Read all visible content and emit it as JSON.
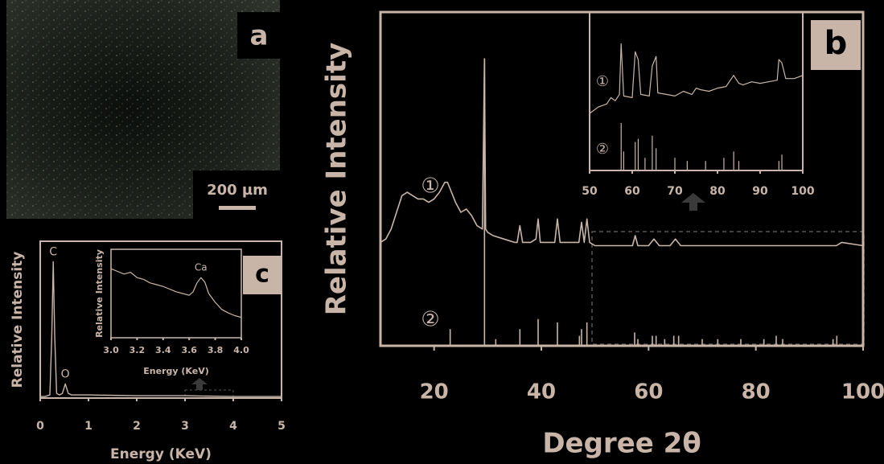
{
  "image_panel": {
    "label": "a",
    "scale_bar": "200 µm"
  },
  "chart_data": [
    {
      "type": "line",
      "panel_label": "b",
      "xlabel": "Degree 2θ",
      "ylabel": "Relative Intensity",
      "xlim": [
        10,
        100
      ],
      "ylim": [
        0,
        100
      ],
      "xticks": [
        20,
        40,
        60,
        80,
        100
      ],
      "series": [
        {
          "name": "①",
          "type": "line",
          "color": "#c9b5a8",
          "x": [
            10,
            11,
            12,
            13,
            14,
            15,
            16,
            17,
            18,
            19,
            20,
            21,
            22,
            22.5,
            23,
            24,
            25,
            26,
            27,
            28,
            29,
            29.4,
            29.6,
            30,
            31,
            33,
            35,
            35.5,
            36,
            36.5,
            38,
            39,
            39.4,
            39.8,
            41,
            42.5,
            43,
            43.5,
            45,
            47,
            47.5,
            48,
            48.5,
            49,
            50,
            55,
            57,
            57.5,
            58,
            60,
            61,
            62,
            64,
            65,
            66,
            70,
            75,
            80,
            85,
            90,
            95,
            96,
            100
          ],
          "values": [
            31,
            32,
            35,
            40,
            45,
            46,
            45,
            44,
            44,
            43,
            44,
            46,
            49,
            49,
            47,
            43,
            40,
            41,
            39,
            36,
            35,
            86,
            35,
            34,
            33,
            32,
            31,
            31,
            36,
            31,
            31,
            32,
            38,
            31,
            31,
            31,
            38,
            31,
            31,
            31,
            37,
            31,
            38,
            31,
            30,
            30,
            30,
            33,
            30,
            30,
            32,
            30,
            30,
            32,
            30,
            30,
            30,
            30,
            30,
            30,
            30,
            31,
            30
          ]
        },
        {
          "name": "②",
          "type": "stem",
          "color": "#c9b5a8",
          "x": [
            23,
            29.4,
            31.5,
            36,
            39.4,
            43,
            47.1,
            47.5,
            48.5,
            57.4,
            58,
            60.7,
            61.4,
            63,
            64.7,
            65.6,
            70,
            72.9,
            77.2,
            81.5,
            83.8,
            85,
            94.4,
            95.1
          ],
          "values": [
            5,
            86,
            2,
            5,
            8,
            7,
            3,
            5,
            7,
            4,
            2,
            3,
            3,
            2,
            3,
            3,
            2,
            2,
            2,
            2,
            3,
            2,
            2,
            3
          ]
        }
      ]
    },
    {
      "type": "line",
      "xlim": [
        50,
        100
      ],
      "ylim": [
        0,
        100
      ],
      "xticks": [
        50,
        60,
        70,
        80,
        90,
        100
      ],
      "series": [
        {
          "name": "①",
          "type": "line",
          "color": "#c9b5a8",
          "x": [
            50,
            52,
            54,
            55,
            56,
            57,
            57.4,
            58,
            60,
            60.7,
            61.4,
            62,
            64,
            64.7,
            65.6,
            66,
            68,
            70,
            72,
            74,
            75,
            76,
            78,
            80,
            82,
            83.8,
            85,
            86,
            88,
            90,
            92,
            94,
            94.4,
            95.1,
            96,
            98,
            100
          ],
          "values": [
            36,
            40,
            42,
            46,
            44,
            48,
            80,
            47,
            46,
            75,
            70,
            48,
            47,
            66,
            72,
            49,
            48,
            47,
            50,
            48,
            52,
            51,
            50,
            52,
            53,
            60,
            55,
            54,
            56,
            55,
            56,
            57,
            70,
            68,
            58,
            58,
            60
          ]
        },
        {
          "name": "②",
          "type": "stem",
          "color": "#c9b5a8",
          "x": [
            57.4,
            58,
            60.7,
            61.4,
            63,
            64.7,
            65.6,
            70,
            72.9,
            77.2,
            81.5,
            83.8,
            85,
            94.4,
            95.1
          ],
          "values": [
            30,
            12,
            18,
            20,
            8,
            22,
            14,
            8,
            6,
            6,
            8,
            12,
            6,
            6,
            10
          ]
        }
      ]
    },
    {
      "type": "line",
      "panel_label": "c",
      "xlabel": "Energy (KeV)",
      "ylabel": "Relative Intensity",
      "xlim": [
        0,
        5
      ],
      "ylim": [
        0,
        100
      ],
      "xticks": [
        0,
        1,
        2,
        3,
        4,
        5
      ],
      "annotations": [
        {
          "text": "C",
          "x": 0.27
        },
        {
          "text": "O",
          "x": 0.52
        }
      ],
      "series": [
        {
          "type": "line",
          "color": "#c9b5a8",
          "x": [
            0,
            0.1,
            0.2,
            0.24,
            0.27,
            0.3,
            0.34,
            0.4,
            0.46,
            0.52,
            0.58,
            0.65,
            1,
            2,
            3,
            4,
            5
          ],
          "values": [
            1,
            1,
            2,
            40,
            87,
            40,
            3,
            2,
            3,
            9,
            3,
            2,
            2,
            1.5,
            1.5,
            1,
            1
          ]
        }
      ]
    },
    {
      "type": "line",
      "xlabel": "Energy (KeV)",
      "ylabel": "Relative Intensity",
      "xlim": [
        3.0,
        4.0
      ],
      "ylim": [
        0,
        100
      ],
      "xticks": [
        {
          "value": 3.0,
          "label": "3.0"
        },
        {
          "value": 3.2,
          "label": "3.2"
        },
        {
          "value": 3.4,
          "label": "3.4"
        },
        {
          "value": 3.6,
          "label": "3.6"
        },
        {
          "value": 3.8,
          "label": "3.8"
        },
        {
          "value": 4.0,
          "label": "4.0"
        }
      ],
      "annotations": [
        {
          "text": "Ca",
          "x": 3.69
        }
      ],
      "series": [
        {
          "type": "line",
          "color": "#c9b5a8",
          "x": [
            3.0,
            3.05,
            3.1,
            3.15,
            3.2,
            3.25,
            3.3,
            3.35,
            3.4,
            3.45,
            3.5,
            3.55,
            3.6,
            3.63,
            3.66,
            3.69,
            3.72,
            3.75,
            3.8,
            3.85,
            3.9,
            3.95,
            4.0
          ],
          "values": [
            78,
            75,
            72,
            74,
            68,
            66,
            62,
            60,
            58,
            55,
            52,
            50,
            48,
            52,
            62,
            68,
            63,
            50,
            40,
            32,
            28,
            25,
            23
          ]
        }
      ]
    }
  ]
}
